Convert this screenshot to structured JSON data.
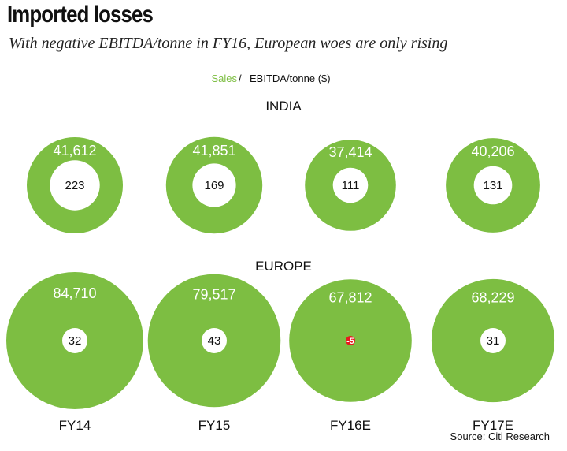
{
  "title": "Imported losses",
  "subtitle": "With negative EBITDA/tonne in FY16, European woes are only rising",
  "source": "Source: Citi Research",
  "colors": {
    "sales": "#7dbe42",
    "inner": "#ffffff",
    "negative": "#e8191f",
    "text": "#111111"
  },
  "chart_data": {
    "type": "bubble",
    "legend": {
      "sales": "Sales",
      "separator": "/",
      "ebitda": "EBITDA/tonne ($)"
    },
    "categories": [
      "FY14",
      "FY15",
      "FY16E",
      "FY17E"
    ],
    "regions": [
      {
        "name": "INDIA",
        "sales": [
          41612,
          41851,
          37414,
          40206
        ],
        "sales_labels": [
          "41,612",
          "41,851",
          "37,414",
          "40,206"
        ],
        "ebitda_per_tonne": [
          223,
          169,
          111,
          131
        ],
        "ebitda_labels": [
          "223",
          "169",
          "111",
          "131"
        ]
      },
      {
        "name": "EUROPE",
        "sales": [
          84710,
          79517,
          67812,
          68229
        ],
        "sales_labels": [
          "84,710",
          "79,517",
          "67,812",
          "68,229"
        ],
        "ebitda_per_tonne": [
          32,
          43,
          -5,
          31
        ],
        "ebitda_labels": [
          "32",
          "43",
          "-5",
          "31"
        ]
      }
    ]
  }
}
